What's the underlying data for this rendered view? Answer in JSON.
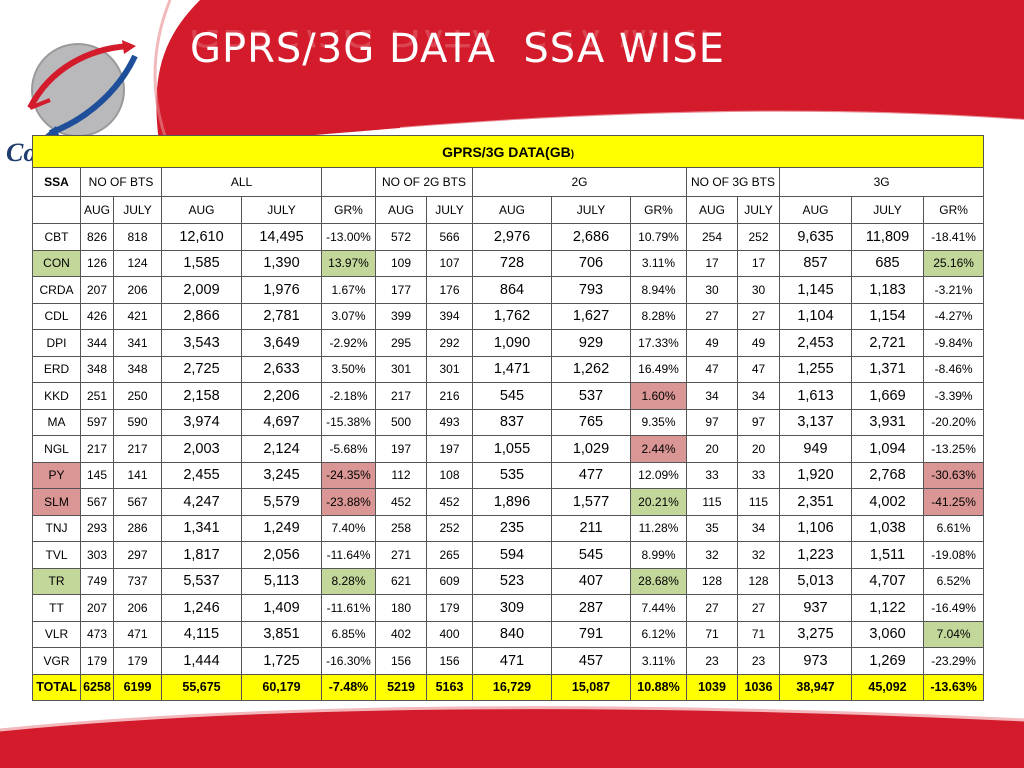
{
  "title": "GPRS/3G DATA  SSA WISE",
  "logo_text": "Co",
  "colors": {
    "banner_red": "#d31b2b",
    "highlight_yellow": "#ffff00",
    "good_green": "#c4d79b",
    "bad_red": "#d99694"
  },
  "table": {
    "caption": "GPRS/3G DATA(GB)",
    "caption_main": "GPRS/3G DATA(GB",
    "caption_paren": ")",
    "headers": {
      "ssa": "SSA",
      "no_of_bts": "NO OF BTS",
      "all": "ALL",
      "no_of_2g_bts": "NO OF 2G BTS",
      "g2": "2G",
      "no_of_3g_bts": "NO OF 3G BTS",
      "g3": "3G"
    },
    "subheaders": [
      "AUG",
      "JULY",
      "AUG",
      "JULY",
      "GR%",
      "AUG",
      "JULY",
      "AUG",
      "JULY",
      "GR%",
      "AUG",
      "JULY",
      "AUG",
      "JULY",
      "GR%"
    ],
    "rows": [
      {
        "ssa": "CBT",
        "c": [
          "826",
          "818",
          "12,610",
          "14,495",
          "-13.00%",
          "572",
          "566",
          "2,976",
          "2,686",
          "10.79%",
          "254",
          "252",
          "9,635",
          "11,809",
          "-18.41%"
        ]
      },
      {
        "ssa": "CON",
        "c": [
          "126",
          "124",
          "1,585",
          "1,390",
          "13.97%",
          "109",
          "107",
          "728",
          "706",
          "3.11%",
          "17",
          "17",
          "857",
          "685",
          "25.16%"
        ]
      },
      {
        "ssa": "CRDA",
        "c": [
          "207",
          "206",
          "2,009",
          "1,976",
          "1.67%",
          "177",
          "176",
          "864",
          "793",
          "8.94%",
          "30",
          "30",
          "1,145",
          "1,183",
          "-3.21%"
        ]
      },
      {
        "ssa": "CDL",
        "c": [
          "426",
          "421",
          "2,866",
          "2,781",
          "3.07%",
          "399",
          "394",
          "1,762",
          "1,627",
          "8.28%",
          "27",
          "27",
          "1,104",
          "1,154",
          "-4.27%"
        ]
      },
      {
        "ssa": "DPI",
        "c": [
          "344",
          "341",
          "3,543",
          "3,649",
          "-2.92%",
          "295",
          "292",
          "1,090",
          "929",
          "17.33%",
          "49",
          "49",
          "2,453",
          "2,721",
          "-9.84%"
        ]
      },
      {
        "ssa": "ERD",
        "c": [
          "348",
          "348",
          "2,725",
          "2,633",
          "3.50%",
          "301",
          "301",
          "1,471",
          "1,262",
          "16.49%",
          "47",
          "47",
          "1,255",
          "1,371",
          "-8.46%"
        ]
      },
      {
        "ssa": "KKD",
        "c": [
          "251",
          "250",
          "2,158",
          "2,206",
          "-2.18%",
          "217",
          "216",
          "545",
          "537",
          "1.60%",
          "34",
          "34",
          "1,613",
          "1,669",
          "-3.39%"
        ]
      },
      {
        "ssa": "MA",
        "c": [
          "597",
          "590",
          "3,974",
          "4,697",
          "-15.38%",
          "500",
          "493",
          "837",
          "765",
          "9.35%",
          "97",
          "97",
          "3,137",
          "3,931",
          "-20.20%"
        ]
      },
      {
        "ssa": "NGL",
        "c": [
          "217",
          "217",
          "2,003",
          "2,124",
          "-5.68%",
          "197",
          "197",
          "1,055",
          "1,029",
          "2.44%",
          "20",
          "20",
          "949",
          "1,094",
          "-13.25%"
        ]
      },
      {
        "ssa": "PY",
        "c": [
          "145",
          "141",
          "2,455",
          "3,245",
          "-24.35%",
          "112",
          "108",
          "535",
          "477",
          "12.09%",
          "33",
          "33",
          "1,920",
          "2,768",
          "-30.63%"
        ]
      },
      {
        "ssa": "SLM",
        "c": [
          "567",
          "567",
          "4,247",
          "5,579",
          "-23.88%",
          "452",
          "452",
          "1,896",
          "1,577",
          "20.21%",
          "115",
          "115",
          "2,351",
          "4,002",
          "-41.25%"
        ]
      },
      {
        "ssa": "TNJ",
        "c": [
          "293",
          "286",
          "1,341",
          "1,249",
          "7.40%",
          "258",
          "252",
          "235",
          "211",
          "11.28%",
          "35",
          "34",
          "1,106",
          "1,038",
          "6.61%"
        ]
      },
      {
        "ssa": "TVL",
        "c": [
          "303",
          "297",
          "1,817",
          "2,056",
          "-11.64%",
          "271",
          "265",
          "594",
          "545",
          "8.99%",
          "32",
          "32",
          "1,223",
          "1,511",
          "-19.08%"
        ]
      },
      {
        "ssa": "TR",
        "c": [
          "749",
          "737",
          "5,537",
          "5,113",
          "8.28%",
          "621",
          "609",
          "523",
          "407",
          "28.68%",
          "128",
          "128",
          "5,013",
          "4,707",
          "6.52%"
        ]
      },
      {
        "ssa": "TT",
        "c": [
          "207",
          "206",
          "1,246",
          "1,409",
          "-11.61%",
          "180",
          "179",
          "309",
          "287",
          "7.44%",
          "27",
          "27",
          "937",
          "1,122",
          "-16.49%"
        ]
      },
      {
        "ssa": "VLR",
        "c": [
          "473",
          "471",
          "4,115",
          "3,851",
          "6.85%",
          "402",
          "400",
          "840",
          "791",
          "6.12%",
          "71",
          "71",
          "3,275",
          "3,060",
          "7.04%"
        ]
      },
      {
        "ssa": "VGR",
        "c": [
          "179",
          "179",
          "1,444",
          "1,725",
          "-16.30%",
          "156",
          "156",
          "471",
          "457",
          "3.11%",
          "23",
          "23",
          "973",
          "1,269",
          "-23.29%"
        ]
      }
    ],
    "total": {
      "ssa": "TOTAL",
      "c": [
        "6258",
        "6199",
        "55,675",
        "60,179",
        "-7.48%",
        "5219",
        "5163",
        "16,729",
        "15,087",
        "10.88%",
        "1039",
        "1036",
        "38,947",
        "45,092",
        "-13.63%"
      ]
    },
    "highlights": {
      "CON": {
        "0": "green",
        "5": "green",
        "15": "green"
      },
      "KKD": {
        "10": "red"
      },
      "NGL": {
        "10": "red"
      },
      "PY": {
        "0": "red",
        "5": "red",
        "15": "red"
      },
      "SLM": {
        "0": "red",
        "5": "red",
        "10": "green",
        "15": "red"
      },
      "TR": {
        "0": "green",
        "5": "green",
        "10": "green"
      },
      "VLR": {
        "15": "green"
      }
    }
  }
}
